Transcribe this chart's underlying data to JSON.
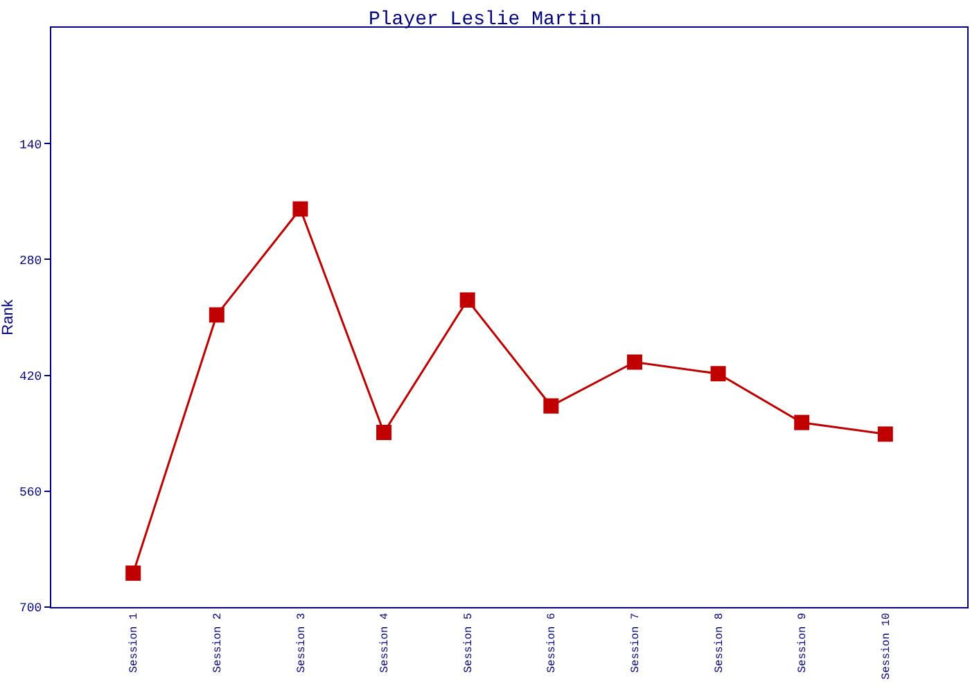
{
  "chart_data": {
    "type": "line",
    "title": "Player Leslie Martin",
    "ylabel": "Rank",
    "categories": [
      "Session 1",
      "Session 2",
      "Session 3",
      "Session 4",
      "Session 5",
      "Session 6",
      "Session 7",
      "Session 8",
      "Session 9",
      "Session 10"
    ],
    "series": [
      {
        "color": "#c00000",
        "values": [
          659,
          347,
          219,
          489,
          329,
          457,
          404,
          418,
          477,
          491
        ]
      }
    ],
    "ylim": [
      700,
      0
    ],
    "yticks": [
      140,
      280,
      420,
      560,
      700
    ],
    "grid": false,
    "marker": "square",
    "line_style": "solid"
  }
}
